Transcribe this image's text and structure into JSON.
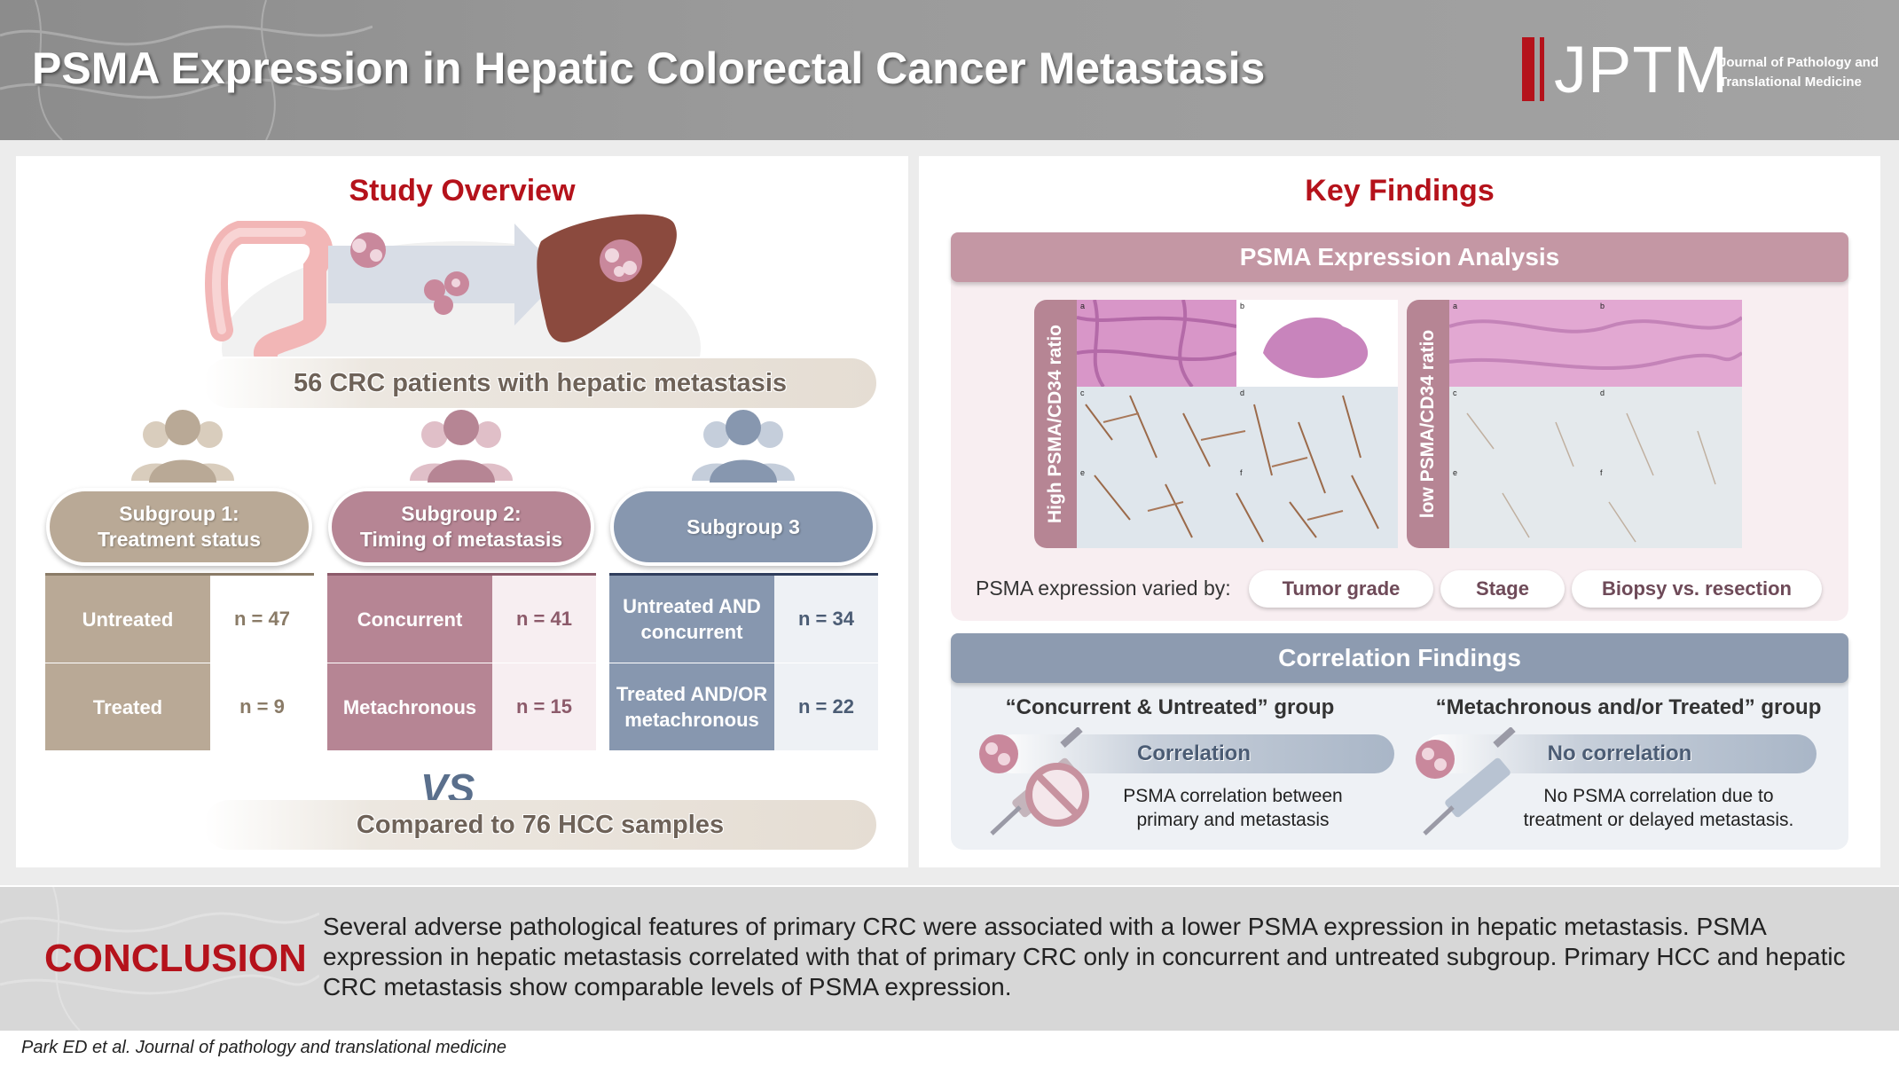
{
  "header": {
    "title": "PSMA Expression in Hepatic Colorectal Cancer Metastasis",
    "logo_abbr": "JPTM",
    "logo_line1": "Journal of Pathology and",
    "logo_line2": "Translational Medicine"
  },
  "study_overview": {
    "title": "Study Overview",
    "patients": "56 CRC patients with hepatic metastasis",
    "subgroups": [
      {
        "label_line1": "Subgroup 1:",
        "label_line2": "Treatment status",
        "color": "#b9a996",
        "rows": [
          {
            "name": "Untreated",
            "n": "n = 47"
          },
          {
            "name": "Treated",
            "n": "n = 9"
          }
        ]
      },
      {
        "label_line1": "Subgroup 2:",
        "label_line2": "Timing of metastasis",
        "color": "#b68594",
        "rows": [
          {
            "name": "Concurrent",
            "n": "n = 41"
          },
          {
            "name": "Metachronous",
            "n": "n = 15"
          }
        ]
      },
      {
        "label_line1": "Subgroup 3",
        "label_line2": "",
        "color": "#8797af",
        "rows": [
          {
            "name_line1": "Untreated AND",
            "name_line2": "concurrent",
            "n": "n = 34"
          },
          {
            "name_line1": "Treated AND/OR",
            "name_line2": "metachronous",
            "n": "n = 22"
          }
        ]
      }
    ],
    "vs": "VS",
    "compared": "Compared to 76 HCC samples"
  },
  "key_findings": {
    "title": "Key Findings",
    "psma_analysis": {
      "title": "PSMA Expression Analysis",
      "high_label": "High PSMA/CD34 ratio",
      "low_label": "low PSMA/CD34 ratio",
      "varied_label": "PSMA expression varied by:",
      "tags": [
        "Tumor grade",
        "Stage",
        "Biopsy vs. resection"
      ],
      "panel_letters": [
        "a",
        "b",
        "c",
        "d",
        "e",
        "f"
      ]
    },
    "correlation": {
      "title": "Correlation Findings",
      "left": {
        "group": "“Concurrent & Untreated” group",
        "result": "Correlation",
        "text_line1": "PSMA correlation between",
        "text_line2": "primary and metastasis"
      },
      "right": {
        "group": "“Metachronous and/or Treated” group",
        "result": "No correlation",
        "text_line1": "No PSMA correlation due to",
        "text_line2": "treatment or delayed metastasis."
      }
    }
  },
  "conclusion": {
    "label": "CONCLUSION",
    "text": "Several adverse pathological features of primary CRC were associated with a lower PSMA expression in hepatic metastasis. PSMA expression in hepatic metastasis correlated with that of primary CRC only in concurrent and untreated subgroup. Primary HCC and hepatic CRC metastasis show comparable levels of PSMA expression."
  },
  "citation": "Park ED et al. Journal of pathology and translational medicine",
  "colors": {
    "accent_red": "#b5121b",
    "subgroup1": "#b9a996",
    "subgroup2": "#b68594",
    "subgroup3": "#8797af",
    "psma_bar": "#c497a4",
    "correlation_bar": "#8d9bb0"
  }
}
